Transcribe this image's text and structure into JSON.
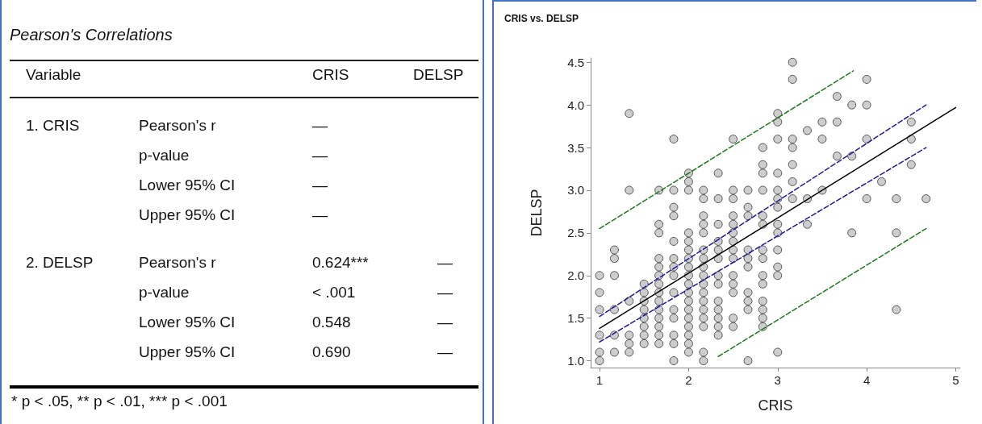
{
  "chart_data": [
    {
      "type": "other",
      "title": "Pearson's Correlations",
      "annotations": [
        "Variable",
        "CRIS",
        "DELSP",
        "1. CRIS",
        "Pearson's r",
        "—",
        "p-value",
        "—",
        "Lower 95% CI",
        "—",
        "Upper 95% CI",
        "—",
        "2. DELSP",
        "Pearson's r",
        "0.624***",
        "—",
        "p-value",
        "< .001",
        "—",
        "Lower 95% CI",
        "0.548",
        "—",
        "Upper 95% CI",
        "0.690",
        "—",
        "* p < .05, ** p < .01, *** p < .001"
      ]
    },
    {
      "type": "scatter",
      "title": "CRIS vs. DELSP",
      "xlabel": "CRIS",
      "ylabel": "DELSP",
      "xlim": [
        0.9,
        5.05
      ],
      "ylim": [
        0.92,
        4.55
      ],
      "xticks": [
        1,
        2,
        3,
        4,
        5
      ],
      "yticks": [
        {
          "value": 1,
          "label": "1.0"
        },
        1.5,
        {
          "value": 2,
          "label": "2.0"
        },
        2.5,
        {
          "value": 3,
          "label": "3.0"
        },
        3.5,
        {
          "value": 4,
          "label": "4.0"
        },
        4.5
      ],
      "grid": false,
      "series": [
        {
          "type": "scatter",
          "color": "#c0c0c0",
          "marker": "circle",
          "x": [
            1,
            1,
            1,
            1,
            1,
            1,
            1.167,
            1.167,
            1.167,
            1.167,
            1.167,
            1.167,
            1.333,
            1.333,
            1.333,
            1.333,
            1.333,
            1.333,
            1.5,
            1.5,
            1.5,
            1.5,
            1.5,
            1.5,
            1.5,
            1.5,
            1.667,
            1.667,
            1.667,
            1.667,
            1.667,
            1.667,
            1.667,
            1.667,
            1.667,
            1.667,
            1.667,
            1.667,
            1.667,
            1.667,
            1.833,
            1.833,
            1.833,
            1.833,
            1.833,
            1.833,
            1.833,
            1.833,
            1.833,
            1.833,
            1.833,
            1.833,
            1.833,
            1.833,
            2,
            2,
            2,
            2,
            2,
            2,
            2,
            2,
            2,
            2,
            2,
            2,
            2,
            2,
            2,
            2,
            2,
            2,
            2.167,
            2.167,
            2.167,
            2.167,
            2.167,
            2.167,
            2.167,
            2.167,
            2.167,
            2.167,
            2.167,
            2.167,
            2.167,
            2.167,
            2.167,
            2.167,
            2.167,
            2.333,
            2.333,
            2.333,
            2.333,
            2.333,
            2.333,
            2.333,
            2.333,
            2.333,
            2.333,
            2.333,
            2.333,
            2.333,
            2.5,
            2.5,
            2.5,
            2.5,
            2.5,
            2.5,
            2.5,
            2.5,
            2.5,
            2.5,
            2.5,
            2.5,
            2.5,
            2.5,
            2.667,
            2.667,
            2.667,
            2.667,
            2.667,
            2.667,
            2.667,
            2.667,
            2.667,
            2.667,
            2.833,
            2.833,
            2.833,
            2.833,
            2.833,
            2.833,
            2.833,
            2.833,
            2.833,
            2.833,
            2.833,
            2.833,
            2.833,
            2.833,
            3,
            3,
            3,
            3,
            3,
            3,
            3,
            3,
            3,
            3,
            3,
            3,
            3,
            3.167,
            3.167,
            3.167,
            3.167,
            3.167,
            3.167,
            3.167,
            3.333,
            3.333,
            3.333,
            3.5,
            3.5,
            3.5,
            3.667,
            3.667,
            3.667,
            3.833,
            3.833,
            3.833,
            4,
            4,
            4,
            4,
            4.167,
            4.333,
            4.333,
            4.333,
            4.5,
            4.5,
            4.5,
            4.667
          ],
          "values": [
            1.0,
            1.1,
            1.3,
            1.6,
            1.8,
            2.0,
            1.1,
            1.3,
            1.6,
            2.0,
            2.2,
            2.3,
            1.1,
            1.2,
            1.3,
            1.7,
            3.0,
            3.9,
            1.2,
            1.3,
            1.4,
            1.5,
            1.6,
            1.7,
            1.8,
            1.9,
            1.2,
            1.3,
            1.4,
            1.5,
            1.6,
            1.7,
            1.8,
            1.9,
            2.0,
            2.1,
            2.2,
            2.5,
            2.6,
            3.0,
            1.0,
            1.2,
            1.3,
            1.5,
            1.6,
            1.8,
            2.0,
            2.1,
            2.2,
            2.4,
            2.7,
            2.8,
            3.0,
            3.6,
            1.1,
            1.2,
            1.3,
            1.4,
            1.5,
            1.6,
            1.7,
            1.8,
            1.9,
            2.0,
            2.1,
            2.2,
            2.3,
            2.4,
            2.5,
            3.0,
            3.1,
            3.2,
            1.0,
            1.1,
            1.4,
            1.5,
            1.6,
            1.7,
            1.8,
            1.9,
            2.0,
            2.1,
            2.2,
            2.3,
            2.5,
            2.6,
            2.7,
            2.9,
            3.0,
            1.3,
            1.4,
            1.5,
            1.6,
            1.7,
            1.9,
            2.0,
            2.2,
            2.3,
            2.4,
            2.6,
            2.9,
            3.2,
            1.4,
            1.5,
            1.8,
            1.9,
            2.0,
            2.2,
            2.3,
            2.4,
            2.5,
            2.6,
            2.7,
            2.9,
            3.0,
            3.6,
            1.0,
            1.6,
            1.7,
            1.8,
            2.1,
            2.2,
            2.3,
            2.7,
            2.8,
            3.0,
            1.4,
            1.5,
            1.6,
            1.7,
            1.9,
            2.0,
            2.2,
            2.3,
            2.6,
            2.7,
            3.0,
            3.2,
            3.3,
            3.5,
            1.1,
            2.0,
            2.1,
            2.3,
            2.5,
            2.6,
            2.8,
            2.9,
            3.0,
            3.2,
            3.6,
            3.8,
            3.9,
            2.9,
            3.1,
            3.3,
            3.5,
            3.6,
            4.3,
            4.5,
            2.6,
            2.9,
            3.7,
            3.0,
            3.6,
            3.8,
            3.4,
            3.8,
            4.1,
            2.5,
            3.4,
            4.0,
            2.9,
            3.6,
            4.0,
            4.3,
            3.1,
            1.6,
            2.5,
            2.9,
            3.3,
            3.6,
            3.8,
            2.9
          ]
        },
        {
          "type": "line",
          "color": "#000000",
          "marker": "none",
          "line_style": "solid",
          "x": [
            1,
            5
          ],
          "values": [
            1.38,
            3.97
          ]
        },
        {
          "type": "line",
          "color": "#1a1aa0",
          "marker": "none",
          "line_style": "dashed",
          "x": [
            1,
            4.667
          ],
          "values": [
            1.52,
            4.0
          ]
        },
        {
          "type": "line",
          "color": "#1a1aa0",
          "marker": "none",
          "line_style": "dashed",
          "x": [
            1,
            4.667
          ],
          "values": [
            1.22,
            3.5
          ]
        },
        {
          "type": "line",
          "color": "#1a7a1a",
          "marker": "none",
          "line_style": "dashed",
          "x": [
            1,
            3.85
          ],
          "values": [
            2.55,
            4.4
          ]
        },
        {
          "type": "line",
          "color": "#1a7a1a",
          "marker": "none",
          "line_style": "dashed",
          "x": [
            2.333,
            4.667
          ],
          "values": [
            1.05,
            2.55
          ]
        }
      ]
    }
  ]
}
